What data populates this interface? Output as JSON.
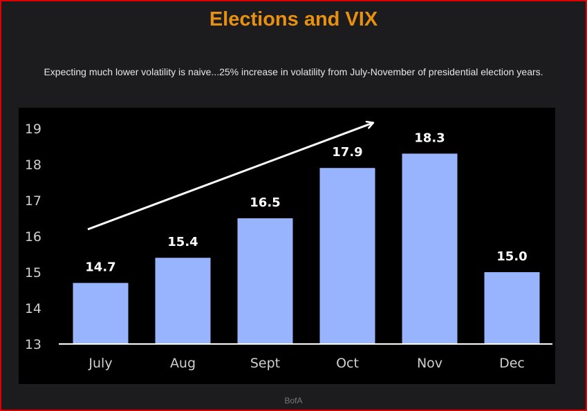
{
  "header": {
    "title": "Elections and VIX",
    "subtitle": "Expecting much lower volatility is naive...25% increase in volatility from July-November of presidential election years."
  },
  "footer": {
    "source": "BofA"
  },
  "colors": {
    "title": "#e8900f",
    "bar": "#99b4ff",
    "chart_bg": "#000000",
    "axis": "#ffffff",
    "tick_text": "#d0d0d0",
    "value_text": "#ffffff",
    "frame_border": "#e10000"
  },
  "chart_data": {
    "type": "bar",
    "categories": [
      "July",
      "Aug",
      "Sept",
      "Oct",
      "Nov",
      "Dec"
    ],
    "values": [
      14.7,
      15.4,
      16.5,
      17.9,
      18.3,
      15.0
    ],
    "value_labels": [
      "14.7",
      "15.4",
      "16.5",
      "17.9",
      "18.3",
      "15.0"
    ],
    "ylim": [
      13,
      19
    ],
    "yticks": [
      13,
      14,
      15,
      16,
      17,
      18,
      19
    ],
    "grid": false,
    "annotation": {
      "type": "trend-arrow",
      "from_category": "July",
      "to_category": "Oct",
      "direction": "up"
    }
  }
}
